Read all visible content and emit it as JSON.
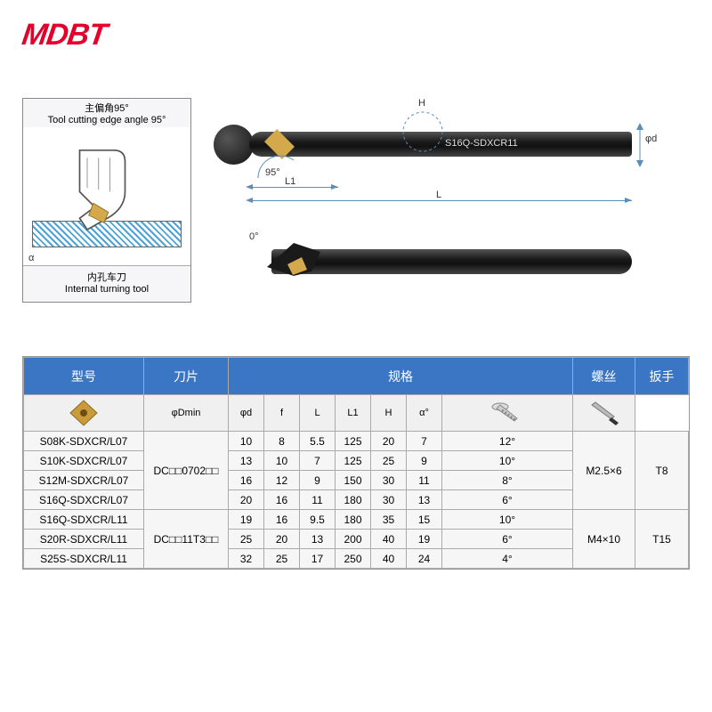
{
  "brand": "MDBT",
  "infoBox": {
    "topCn": "主偏角95°",
    "topEn": "Tool cutting edge angle 95°",
    "bottomCn": "内孔车刀",
    "bottomEn": "Internal turning tool"
  },
  "techDrawing": {
    "modelOnTool": "S16Q-SDXCR11",
    "angle95": "95°",
    "angle0": "0°",
    "labels": {
      "H": "H",
      "L1": "L1",
      "L": "L",
      "phid": "φd",
      "alpha": "α"
    }
  },
  "header": {
    "model": "型号",
    "insert": "刀片",
    "spec": "规格",
    "screw": "螺丝",
    "wrench": "扳手"
  },
  "subhead": {
    "phiDmin": "φDmin",
    "phid": "φd",
    "f": "f",
    "L": "L",
    "L1": "L1",
    "H": "H",
    "alpha": "α°"
  },
  "insertGroups": [
    {
      "label": "DC□□0702□□",
      "span": 4
    },
    {
      "label": "DC□□11T3□□",
      "span": 3
    }
  ],
  "screwGroups": [
    {
      "label": "M2.5×6",
      "span": 4
    },
    {
      "label": "M4×10",
      "span": 3
    }
  ],
  "wrenchGroups": [
    {
      "label": "T8",
      "span": 4
    },
    {
      "label": "T15",
      "span": 3
    }
  ],
  "rows": [
    {
      "model": "S08K-SDXCR/L07",
      "d": [
        "10",
        "8",
        "5.5",
        "125",
        "20",
        "7",
        "12°"
      ]
    },
    {
      "model": "S10K-SDXCR/L07",
      "d": [
        "13",
        "10",
        "7",
        "125",
        "25",
        "9",
        "10°"
      ]
    },
    {
      "model": "S12M-SDXCR/L07",
      "d": [
        "16",
        "12",
        "9",
        "150",
        "30",
        "11",
        "8°"
      ]
    },
    {
      "model": "S16Q-SDXCR/L07",
      "d": [
        "20",
        "16",
        "11",
        "180",
        "30",
        "13",
        "6°"
      ]
    },
    {
      "model": "S16Q-SDXCR/L11",
      "d": [
        "19",
        "16",
        "9.5",
        "180",
        "35",
        "15",
        "10°"
      ]
    },
    {
      "model": "S20R-SDXCR/L11",
      "d": [
        "25",
        "20",
        "13",
        "200",
        "40",
        "19",
        "6°"
      ]
    },
    {
      "model": "S25S-SDXCR/L11",
      "d": [
        "32",
        "25",
        "17",
        "250",
        "40",
        "24",
        "4°"
      ]
    }
  ],
  "colors": {
    "headerBg": "#3b76c4",
    "brand": "#e4002b",
    "rowBg": "#f6f6f6"
  }
}
